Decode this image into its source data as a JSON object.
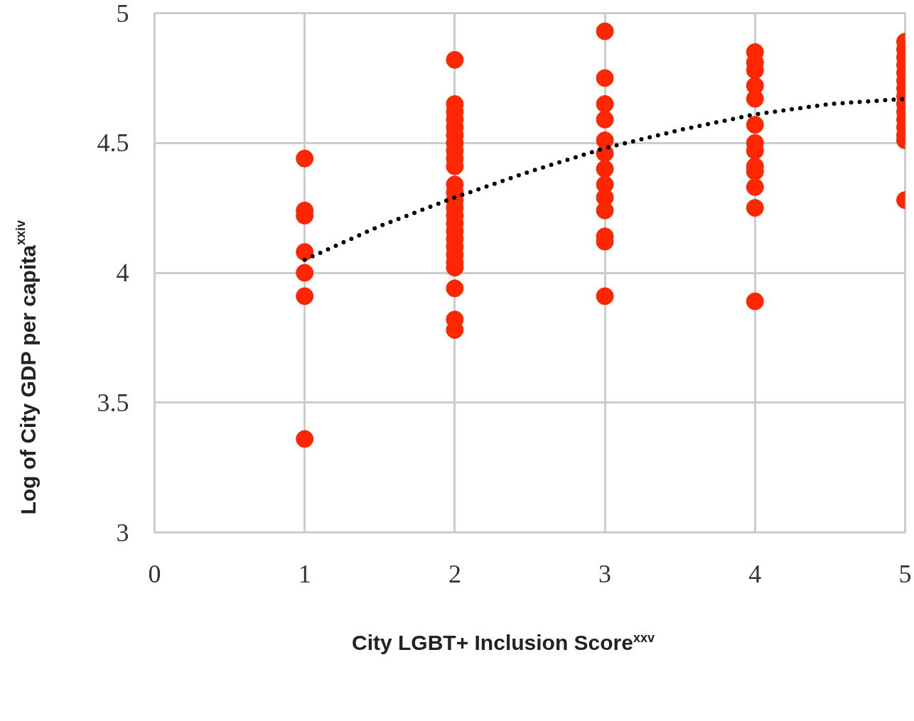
{
  "chart_data": {
    "type": "scatter",
    "xlabel": "City LGBT+ Inclusion Score$^{xxv}$",
    "ylabel": "Log of City GDP per capita$^{xxiv}$",
    "xlim": [
      0,
      5
    ],
    "xticks": [
      0,
      1,
      2,
      3,
      4,
      5
    ],
    "ylim": [
      3,
      5
    ],
    "yticks": [
      3,
      3.5,
      4,
      4.5,
      5
    ],
    "grid": true,
    "marker": "circle",
    "series": [
      {
        "color": "#ff2600",
        "x": [
          1,
          1,
          1,
          1,
          1,
          1,
          1,
          2,
          2,
          2,
          2,
          2,
          2,
          2,
          2,
          2,
          2,
          2,
          2,
          2,
          2,
          2,
          2,
          2,
          2,
          2,
          2,
          2,
          2,
          2,
          2,
          2,
          3,
          3,
          3,
          3,
          3,
          3,
          3,
          3,
          3,
          3,
          3,
          3,
          3,
          4,
          4,
          4,
          4,
          4,
          4,
          4,
          4,
          4,
          4,
          4,
          4,
          4,
          5,
          5,
          5,
          5,
          5,
          5,
          5,
          5,
          5,
          5,
          5,
          5,
          5,
          5,
          5
        ],
        "values": [
          4.44,
          4.24,
          4.22,
          4.08,
          4.0,
          3.91,
          3.36,
          4.82,
          4.65,
          4.62,
          4.59,
          4.56,
          4.53,
          4.5,
          4.47,
          4.44,
          4.41,
          4.34,
          4.31,
          4.28,
          4.25,
          4.22,
          4.19,
          4.16,
          4.13,
          4.1,
          4.07,
          4.04,
          4.02,
          3.94,
          3.82,
          3.78,
          4.93,
          4.75,
          4.65,
          4.59,
          4.51,
          4.46,
          4.4,
          4.34,
          4.29,
          4.24,
          4.14,
          4.12,
          3.91,
          4.85,
          4.81,
          4.78,
          4.72,
          4.67,
          4.57,
          4.5,
          4.47,
          4.41,
          4.39,
          4.33,
          4.25,
          3.89,
          4.89,
          4.86,
          4.83,
          4.8,
          4.77,
          4.74,
          4.71,
          4.68,
          4.65,
          4.62,
          4.59,
          4.56,
          4.53,
          4.51,
          4.28
        ]
      },
      {
        "type": "line",
        "color": "#000000",
        "line_style": "dotted",
        "marker": "none",
        "x": [
          1,
          1.5,
          2,
          2.5,
          3,
          3.5,
          4,
          4.5,
          5
        ],
        "values": [
          4.05,
          4.18,
          4.29,
          4.39,
          4.48,
          4.55,
          4.61,
          4.65,
          4.67
        ]
      }
    ]
  }
}
